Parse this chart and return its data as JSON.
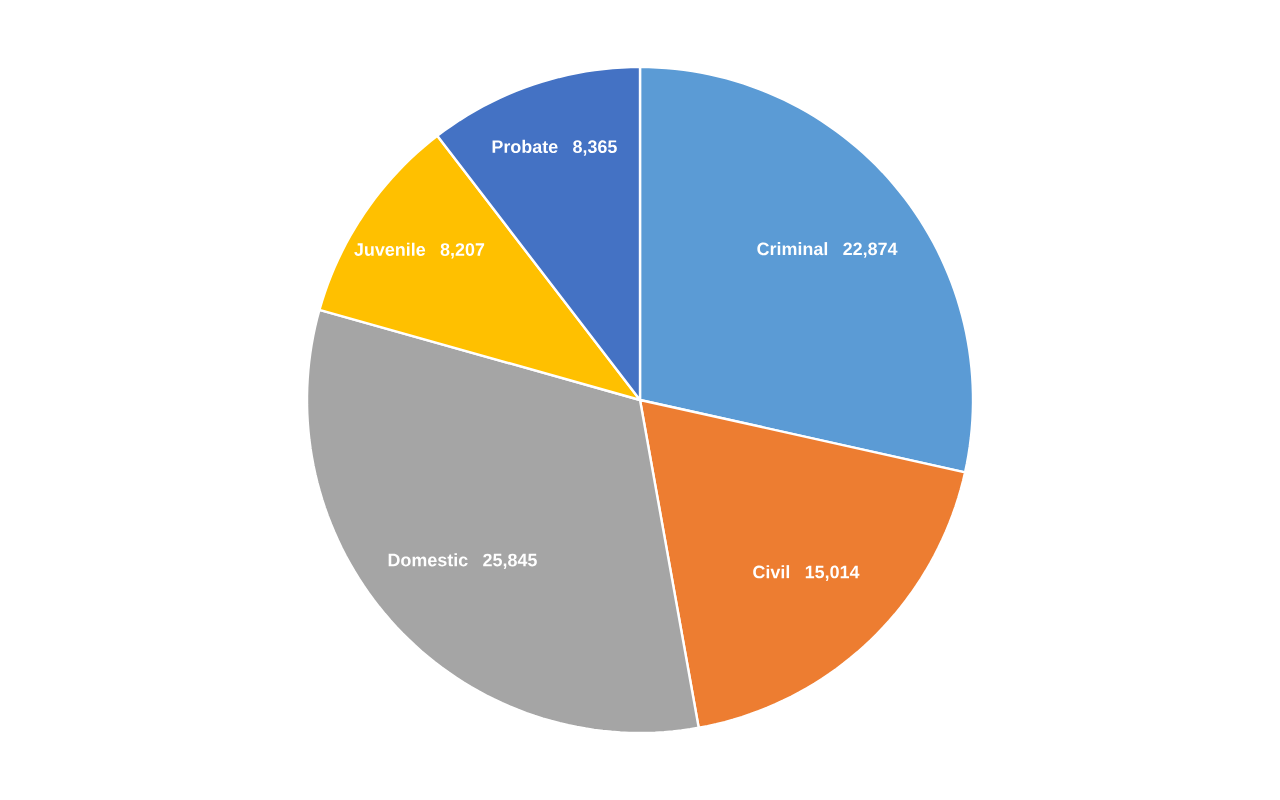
{
  "chart_data": {
    "type": "pie",
    "categories": [
      "Criminal",
      "Civil",
      "Domestic",
      "Juvenile",
      "Probate"
    ],
    "values": [
      22874,
      15014,
      25845,
      8207,
      8365
    ],
    "colors": [
      "#5b9bd5",
      "#ed7d31",
      "#a5a5a5",
      "#ffc000",
      "#4472c4"
    ],
    "value_labels": [
      "22,874",
      "15,014",
      "25,845",
      "8,207",
      "8,365"
    ]
  }
}
